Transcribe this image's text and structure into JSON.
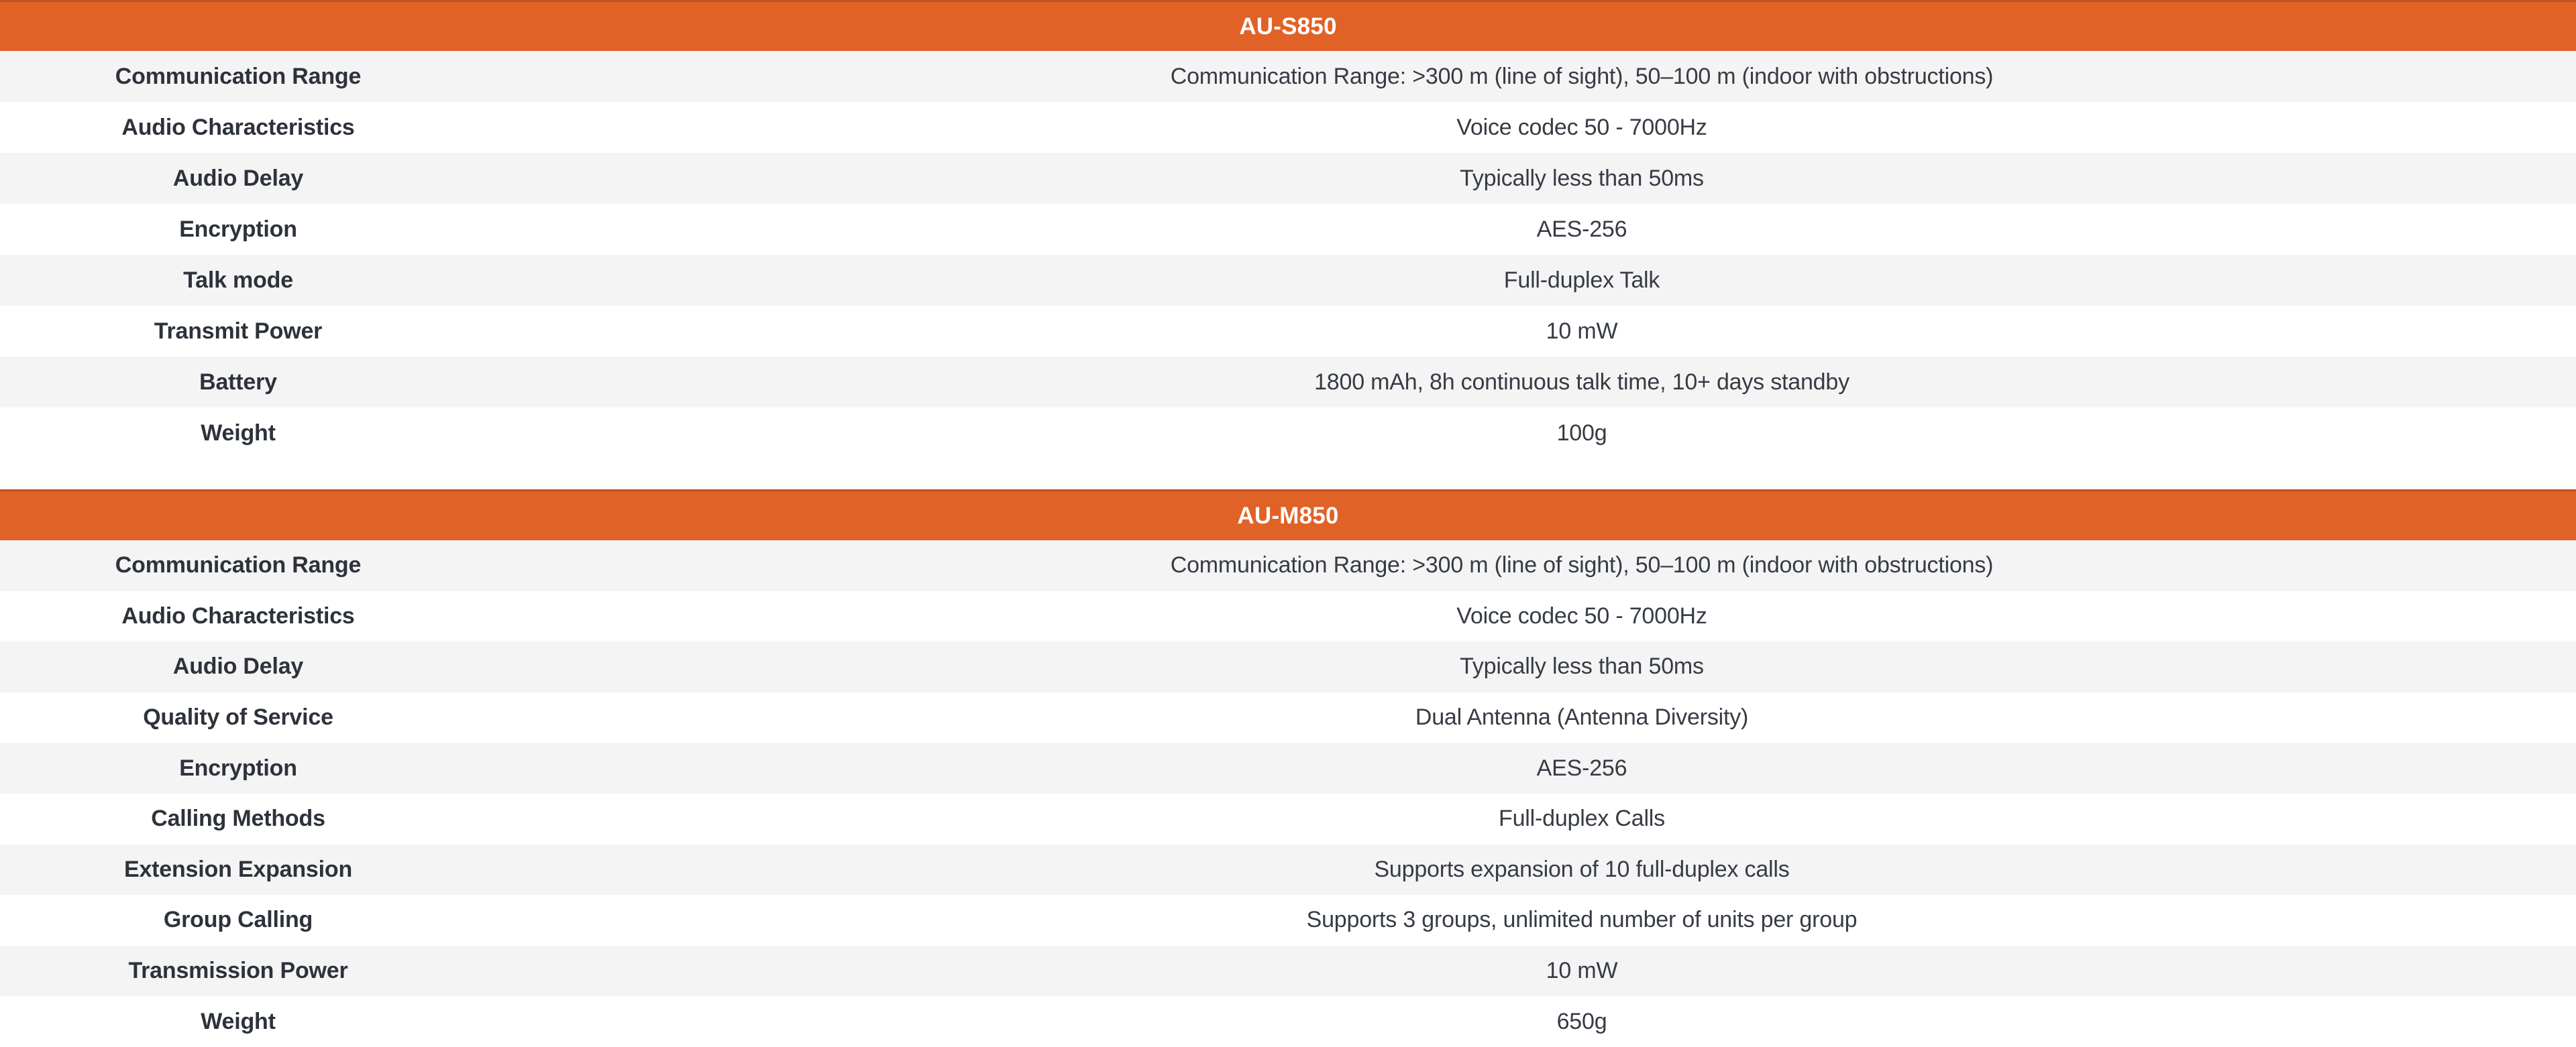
{
  "colors": {
    "header_bg": "#E16226",
    "header_border": "#BE5120",
    "header_text": "#FFFFFF",
    "row_alt_bg": "#F4F4F5",
    "row_bg": "#FFFFFF",
    "label_text": "#2D323B",
    "value_text": "#363B44"
  },
  "tables": [
    {
      "title": "AU-S850",
      "rows": [
        {
          "label": "Communication Range",
          "value": "Communication Range: >300 m (line of sight), 50–100 m (indoor with obstructions)"
        },
        {
          "label": "Audio Characteristics",
          "value": "Voice codec 50 - 7000Hz"
        },
        {
          "label": "Audio Delay",
          "value": "Typically less than 50ms"
        },
        {
          "label": "Encryption",
          "value": "AES-256"
        },
        {
          "label": "Talk mode",
          "value": "Full-duplex Talk"
        },
        {
          "label": "Transmit Power",
          "value": "10 mW"
        },
        {
          "label": "Battery",
          "value": "1800 mAh, 8h continuous talk time, 10+ days standby"
        },
        {
          "label": "Weight",
          "value": "100g"
        }
      ]
    },
    {
      "title": "AU-M850",
      "rows": [
        {
          "label": "Communication Range",
          "value": "Communication Range: >300 m (line of sight), 50–100 m (indoor with obstructions)"
        },
        {
          "label": "Audio Characteristics",
          "value": "Voice codec 50 - 7000Hz"
        },
        {
          "label": "Audio Delay",
          "value": "Typically less than 50ms"
        },
        {
          "label": "Quality of Service",
          "value": "Dual Antenna (Antenna Diversity)"
        },
        {
          "label": "Encryption",
          "value": "AES-256"
        },
        {
          "label": "Calling Methods",
          "value": "Full-duplex Calls"
        },
        {
          "label": "Extension Expansion",
          "value": "Supports expansion of 10 full-duplex calls"
        },
        {
          "label": "Group Calling",
          "value": "Supports 3 groups, unlimited number of units per group"
        },
        {
          "label": "Transmission Power",
          "value": "10 mW"
        },
        {
          "label": "Weight",
          "value": "650g"
        }
      ]
    }
  ]
}
